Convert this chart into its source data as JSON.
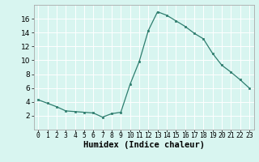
{
  "x": [
    0,
    1,
    2,
    3,
    4,
    5,
    6,
    7,
    8,
    9,
    10,
    11,
    12,
    13,
    14,
    15,
    16,
    17,
    18,
    19,
    20,
    21,
    22,
    23
  ],
  "y": [
    4.3,
    3.8,
    3.3,
    2.7,
    2.6,
    2.5,
    2.4,
    1.8,
    2.3,
    2.5,
    6.5,
    9.8,
    14.3,
    17.0,
    16.5,
    15.7,
    14.9,
    13.9,
    13.1,
    11.0,
    9.3,
    8.3,
    7.2,
    6.0
  ],
  "line_color": "#2e7d6e",
  "marker": "s",
  "marker_size": 2.0,
  "bg_color": "#d8f5f0",
  "grid_color": "#ffffff",
  "xlabel": "Humidex (Indice chaleur)",
  "ylim": [
    0,
    18
  ],
  "xlim": [
    -0.5,
    23.5
  ],
  "yticks": [
    2,
    4,
    6,
    8,
    10,
    12,
    14,
    16
  ],
  "xticks": [
    0,
    1,
    2,
    3,
    4,
    5,
    6,
    7,
    8,
    9,
    10,
    11,
    12,
    13,
    14,
    15,
    16,
    17,
    18,
    19,
    20,
    21,
    22,
    23
  ],
  "xtick_labels": [
    "0",
    "1",
    "2",
    "3",
    "4",
    "5",
    "6",
    "7",
    "8",
    "9",
    "10",
    "11",
    "12",
    "13",
    "14",
    "15",
    "16",
    "17",
    "18",
    "19",
    "20",
    "21",
    "22",
    "23"
  ],
  "xlabel_fontsize": 7.5,
  "tick_fontsize": 5.8,
  "ytick_fontsize": 6.5,
  "linewidth": 0.9
}
